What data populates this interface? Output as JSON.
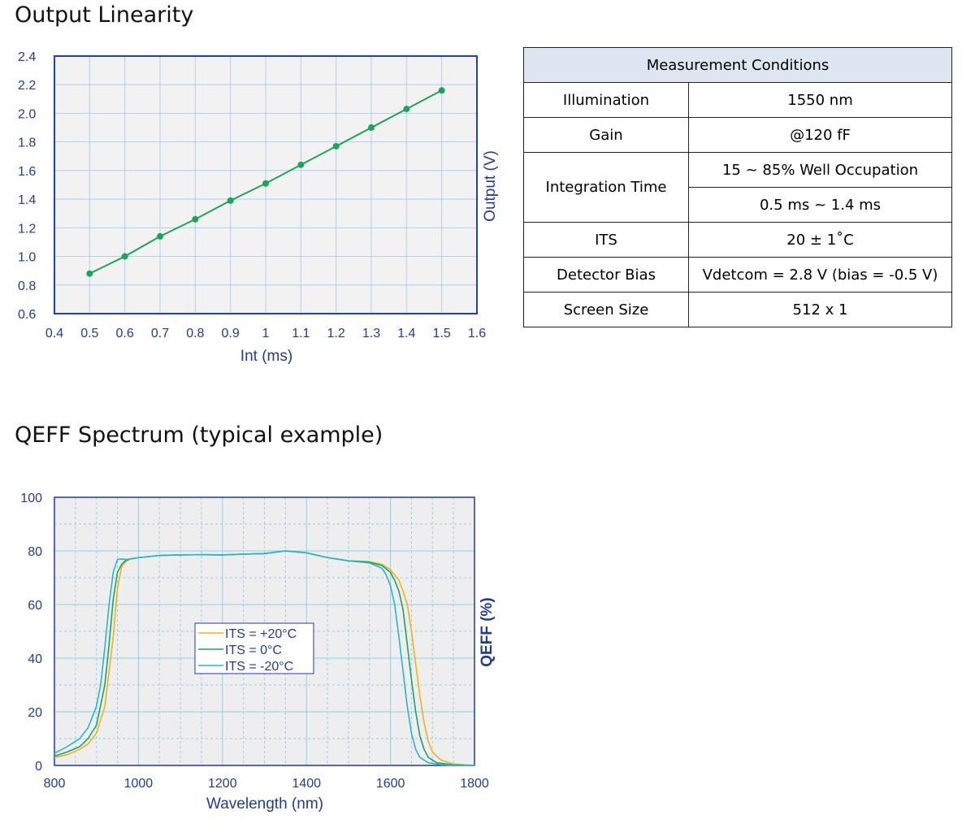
{
  "titles": {
    "linearity": "Output Linearity",
    "qeff": "QEFF Spectrum (typical example)"
  },
  "conditions": {
    "header": "Measurement Conditions",
    "illumination_label": "Illumination",
    "illumination_value": "1550 nm",
    "gain_label": "Gain",
    "gain_value": "@120 fF",
    "integration_label": "Integration Time",
    "integration_value_1": "15 ~ 85% Well Occupation",
    "integration_value_2": "0.5 ms ~ 1.4 ms",
    "its_label": "ITS",
    "its_value": "20 ± 1˚C",
    "bias_label": "Detector Bias",
    "bias_value": "Vdetcom = 2.8 V (bias = -0.5 V)",
    "screen_label": "Screen Size",
    "screen_value": "512 x 1"
  },
  "chart_data": [
    {
      "type": "line",
      "xlabel": "Int (ms)",
      "ylabel": "Output (V)",
      "xlim": [
        0.4,
        1.6
      ],
      "ylim": [
        0.6,
        2.4
      ],
      "xticks": [
        "0.4",
        "0.5",
        "0.6",
        "0.7",
        "0.8",
        "0.9",
        "1",
        "1.1",
        "1.2",
        "1.3",
        "1.4",
        "1.5",
        "1.6"
      ],
      "yticks": [
        "0.6",
        "0.8",
        "1.0",
        "1.2",
        "1.4",
        "1.6",
        "1.8",
        "2.0",
        "2.2",
        "2.4"
      ],
      "grid": true,
      "color": "#1ea35a",
      "x": [
        0.5,
        0.6,
        0.7,
        0.8,
        0.9,
        1.0,
        1.1,
        1.2,
        1.3,
        1.4,
        1.5
      ],
      "y": [
        0.88,
        1.0,
        1.14,
        1.26,
        1.39,
        1.51,
        1.64,
        1.77,
        1.9,
        2.03,
        2.16
      ]
    },
    {
      "type": "line",
      "xlabel": "Wavelength (nm)",
      "ylabel": "QEFF (%)",
      "xlim": [
        800,
        1800
      ],
      "ylim": [
        0,
        100
      ],
      "xticks": [
        "800",
        "1000",
        "1200",
        "1400",
        "1600",
        "1800"
      ],
      "yticks": [
        "0",
        "20",
        "40",
        "60",
        "80",
        "100"
      ],
      "grid": true,
      "legend_position": "center",
      "series": [
        {
          "name": "ITS = +20°C",
          "color": "#f0b21a",
          "x": [
            800,
            830,
            860,
            880,
            900,
            920,
            940,
            950,
            960,
            970,
            980,
            1000,
            1050,
            1100,
            1150,
            1200,
            1250,
            1300,
            1350,
            1400,
            1450,
            1500,
            1550,
            1580,
            1600,
            1620,
            1630,
            1640,
            1650,
            1660,
            1670,
            1680,
            1690,
            1700,
            1720,
            1750,
            1800
          ],
          "y": [
            3,
            4,
            6,
            8,
            12,
            22,
            48,
            66,
            74,
            76,
            77,
            77.5,
            78.3,
            78.5,
            78.6,
            78.5,
            78.8,
            79,
            80,
            79.3,
            77.5,
            76.3,
            76,
            75,
            73,
            69,
            65,
            60,
            50,
            38,
            26,
            16,
            9,
            5,
            2,
            0.5,
            0
          ]
        },
        {
          "name": "ITS = 0°C",
          "color": "#23a064",
          "x": [
            800,
            830,
            860,
            880,
            900,
            920,
            930,
            940,
            950,
            960,
            970,
            980,
            1000,
            1050,
            1100,
            1150,
            1200,
            1250,
            1300,
            1350,
            1400,
            1450,
            1500,
            1550,
            1580,
            1600,
            1610,
            1620,
            1630,
            1640,
            1650,
            1660,
            1670,
            1680,
            1690,
            1710,
            1750,
            1800
          ],
          "y": [
            3.5,
            5,
            7,
            10,
            15,
            30,
            45,
            62,
            72,
            75,
            76.5,
            77,
            77.5,
            78.3,
            78.5,
            78.6,
            78.5,
            78.8,
            79,
            80,
            79.3,
            77.5,
            76.3,
            75.8,
            74.5,
            72,
            69,
            65,
            58,
            45,
            32,
            20,
            11,
            6,
            3,
            1,
            0.2,
            0
          ]
        },
        {
          "name": "ITS = -20°C",
          "color": "#26b6cf",
          "x": [
            800,
            830,
            860,
            880,
            900,
            910,
            920,
            930,
            940,
            950,
            960,
            970,
            980,
            1000,
            1050,
            1100,
            1150,
            1200,
            1250,
            1300,
            1350,
            1400,
            1450,
            1500,
            1550,
            1580,
            1590,
            1600,
            1610,
            1620,
            1630,
            1640,
            1650,
            1660,
            1670,
            1690,
            1720,
            1750,
            1800
          ],
          "y": [
            4.5,
            7,
            10,
            14,
            22,
            30,
            44,
            60,
            72,
            76.8,
            77,
            76.8,
            77,
            77.5,
            78.3,
            78.5,
            78.6,
            78.5,
            78.8,
            79,
            80,
            79.3,
            77.5,
            76.3,
            75.5,
            73.5,
            71,
            67,
            60,
            48,
            35,
            22,
            12,
            6,
            3,
            1,
            0.3,
            0,
            0
          ]
        }
      ]
    }
  ]
}
